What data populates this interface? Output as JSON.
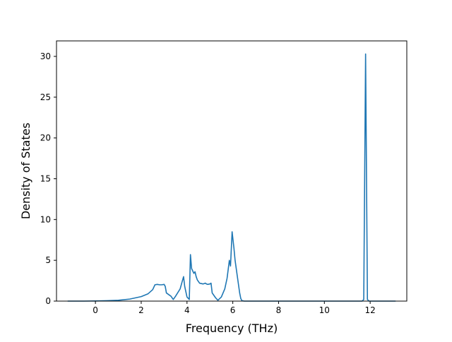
{
  "chart_data": {
    "type": "line",
    "title": "",
    "xlabel": "Frequency (THz)",
    "ylabel": "Density of States",
    "xlim": [
      -1.7,
      13.6
    ],
    "ylim": [
      0,
      31.9
    ],
    "x_ticks": [
      0,
      2,
      4,
      6,
      8,
      10,
      12
    ],
    "y_ticks": [
      0,
      5,
      10,
      15,
      20,
      25,
      30
    ],
    "grid": false,
    "legend": "none",
    "series": [
      {
        "color": "#1f77b4",
        "x": [
          -1.2,
          -0.5,
          0.0,
          0.5,
          1.0,
          1.5,
          2.0,
          2.3,
          2.5,
          2.6,
          2.7,
          2.8,
          2.9,
          3.0,
          3.05,
          3.1,
          3.3,
          3.4,
          3.5,
          3.7,
          3.85,
          3.9,
          4.0,
          4.1,
          4.15,
          4.2,
          4.3,
          4.35,
          4.4,
          4.45,
          4.55,
          4.7,
          4.8,
          4.85,
          4.9,
          5.0,
          5.05,
          5.1,
          5.15,
          5.25,
          5.35,
          5.5,
          5.65,
          5.75,
          5.85,
          5.9,
          5.97,
          6.05,
          6.1,
          6.2,
          6.3,
          6.35,
          6.4,
          6.5,
          7.0,
          8.0,
          9.0,
          10.0,
          11.0,
          11.5,
          11.65,
          11.72,
          11.8,
          11.88,
          11.95,
          12.1,
          12.5,
          13.1
        ],
        "y": [
          0,
          0,
          0.02,
          0.05,
          0.1,
          0.25,
          0.55,
          0.9,
          1.4,
          2.0,
          2.05,
          2.0,
          2.0,
          2.05,
          1.8,
          1.0,
          0.6,
          0.2,
          0.6,
          1.5,
          3.0,
          1.8,
          0.5,
          0.2,
          5.7,
          4.0,
          3.4,
          3.6,
          3.0,
          2.6,
          2.2,
          2.1,
          2.2,
          2.1,
          2.05,
          2.1,
          2.2,
          1.0,
          0.8,
          0.4,
          0.1,
          0.5,
          1.5,
          2.8,
          5.0,
          4.3,
          8.5,
          6.5,
          5.0,
          3.0,
          1.0,
          0.3,
          0.05,
          0,
          0,
          0,
          0,
          0,
          0,
          0,
          0,
          0.2,
          30.3,
          0.2,
          0,
          0,
          0,
          0
        ]
      }
    ]
  }
}
